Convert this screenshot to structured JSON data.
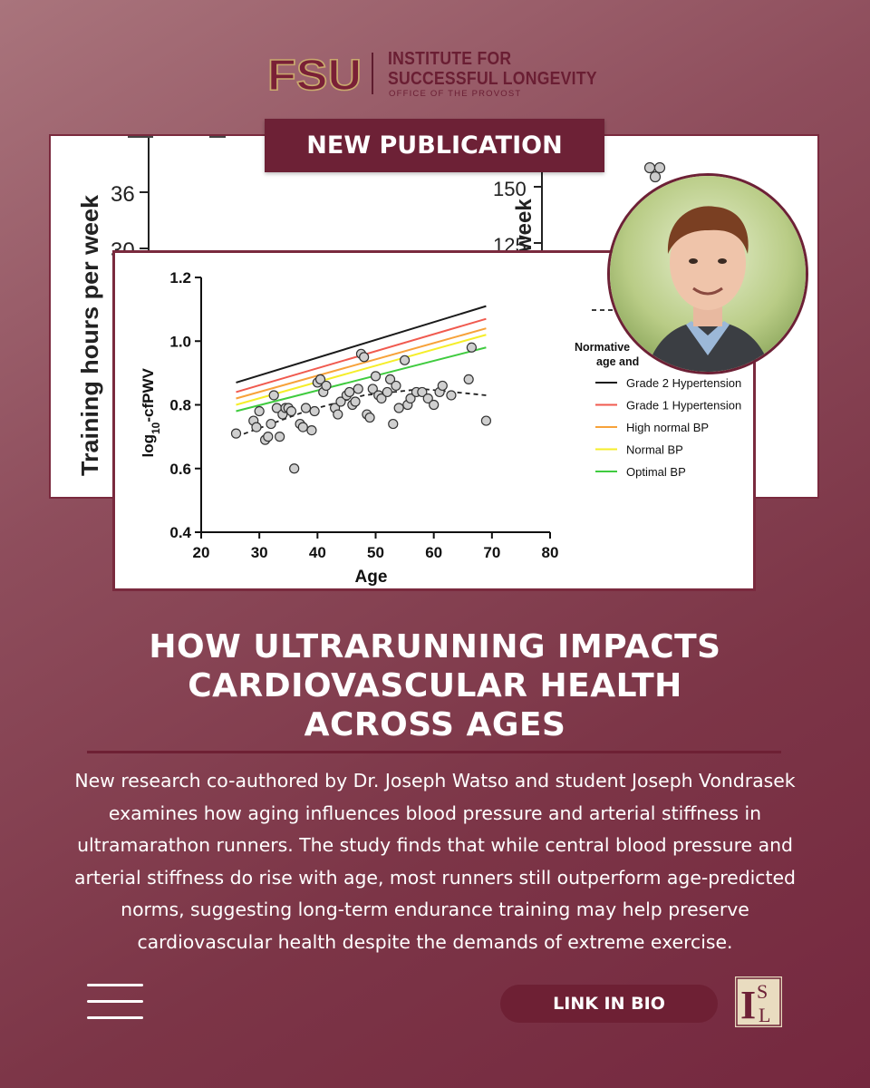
{
  "header": {
    "fsu_logo_text": "FSU",
    "institute_line1": "INSTITUTE FOR",
    "institute_line2": "SUCCESSFUL LONGEVITY",
    "office": "OFFICE OF THE PROVOST"
  },
  "badge": "NEW PUBLICATION",
  "back_figure": {
    "left_ylabel": "Training hours per week",
    "left_ticks": [
      "36",
      "30"
    ],
    "right_ylabel": "week",
    "right_ticks": [
      "150",
      "125"
    ]
  },
  "chart_data": {
    "type": "scatter",
    "xlabel": "Age",
    "ylabel": "log10-cfPWV",
    "ylabel_main": "log",
    "ylabel_sub": "10",
    "ylabel_tail": "-cfPWV",
    "xlim": [
      20,
      80
    ],
    "ylim": [
      0.4,
      1.2
    ],
    "xticks": [
      "20",
      "30",
      "40",
      "50",
      "60",
      "70",
      "80"
    ],
    "yticks": [
      "0.4",
      "0.6",
      "0.8",
      "1.0",
      "1.2"
    ],
    "legend_title_line1": "Normative",
    "legend_title_line2": "age and",
    "legend_placement": "right",
    "lines": [
      {
        "name": "Grade 2 Hypertension",
        "color": "#1a1a1a",
        "x": [
          26,
          69
        ],
        "y": [
          0.87,
          1.11
        ]
      },
      {
        "name": "Grade 1 Hypertension",
        "color": "#f05a4f",
        "x": [
          26,
          69
        ],
        "y": [
          0.84,
          1.07
        ]
      },
      {
        "name": "High normal BP",
        "color": "#f7a23a",
        "x": [
          26,
          69
        ],
        "y": [
          0.82,
          1.04
        ]
      },
      {
        "name": "Normal BP",
        "color": "#f5ee2a",
        "x": [
          26,
          69
        ],
        "y": [
          0.8,
          1.02
        ]
      },
      {
        "name": "Optimal BP",
        "color": "#3fcb3f",
        "x": [
          26,
          69
        ],
        "y": [
          0.78,
          0.98
        ]
      }
    ],
    "trend": {
      "x": [
        26,
        38,
        48,
        58,
        69
      ],
      "y": [
        0.7,
        0.78,
        0.83,
        0.85,
        0.83
      ]
    },
    "points": [
      [
        26,
        0.71
      ],
      [
        29,
        0.75
      ],
      [
        29.5,
        0.73
      ],
      [
        30,
        0.78
      ],
      [
        31,
        0.69
      ],
      [
        31.5,
        0.7
      ],
      [
        32,
        0.74
      ],
      [
        32.5,
        0.83
      ],
      [
        33,
        0.79
      ],
      [
        33.5,
        0.7
      ],
      [
        34,
        0.77
      ],
      [
        34.5,
        0.79
      ],
      [
        35,
        0.79
      ],
      [
        35.5,
        0.78
      ],
      [
        36,
        0.6
      ],
      [
        37,
        0.74
      ],
      [
        37.5,
        0.73
      ],
      [
        38,
        0.79
      ],
      [
        39,
        0.72
      ],
      [
        39.5,
        0.78
      ],
      [
        40,
        0.87
      ],
      [
        40.5,
        0.88
      ],
      [
        41,
        0.84
      ],
      [
        41.5,
        0.86
      ],
      [
        43,
        0.79
      ],
      [
        43.5,
        0.77
      ],
      [
        44,
        0.81
      ],
      [
        45,
        0.83
      ],
      [
        45.5,
        0.84
      ],
      [
        46,
        0.8
      ],
      [
        46.5,
        0.81
      ],
      [
        47,
        0.85
      ],
      [
        47.5,
        0.96
      ],
      [
        48,
        0.95
      ],
      [
        48.5,
        0.77
      ],
      [
        49,
        0.76
      ],
      [
        49.5,
        0.85
      ],
      [
        50,
        0.89
      ],
      [
        50.5,
        0.83
      ],
      [
        51,
        0.82
      ],
      [
        52,
        0.84
      ],
      [
        52.5,
        0.88
      ],
      [
        53,
        0.74
      ],
      [
        53.5,
        0.86
      ],
      [
        54,
        0.79
      ],
      [
        55,
        0.94
      ],
      [
        55.5,
        0.8
      ],
      [
        56,
        0.82
      ],
      [
        57,
        0.84
      ],
      [
        58,
        0.84
      ],
      [
        59,
        0.82
      ],
      [
        60,
        0.8
      ],
      [
        61,
        0.84
      ],
      [
        61.5,
        0.86
      ],
      [
        63,
        0.83
      ],
      [
        66,
        0.88
      ],
      [
        66.5,
        0.98
      ],
      [
        69,
        0.75
      ]
    ]
  },
  "headline": {
    "line1": "HOW ULTRARUNNING IMPACTS",
    "line2": "CARDIOVASCULAR HEALTH",
    "line3": "ACROSS AGES"
  },
  "body": "New research co-authored by Dr. Joseph Watso and student Joseph Vondrasek examines how aging influences blood pressure and arterial stiffness in ultramarathon runners. The study finds that while central blood pressure and arterial stiffness do rise with age, most runners still outperform age-predicted norms, suggesting long-term endurance training may help preserve cardiovascular health despite the demands of extreme exercise.",
  "footer": {
    "link_label": "LINK IN BIO",
    "isl_letter_1": "I",
    "isl_letter_2": "S",
    "isl_letter_3": "L"
  },
  "colors": {
    "garnet": "#6d2136",
    "gold": "#c9a96e",
    "background": "#8b4656"
  }
}
